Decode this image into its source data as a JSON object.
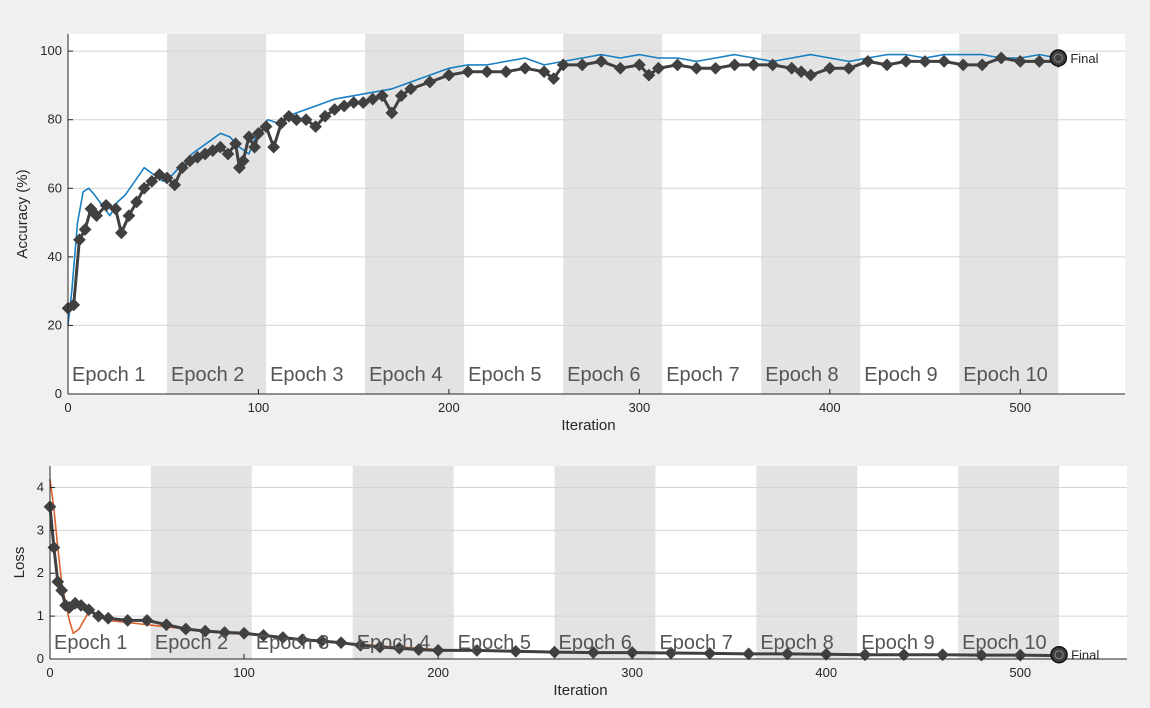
{
  "chart_data": [
    {
      "type": "line",
      "xlabel": "Iteration",
      "ylabel": "Accuracy (%)",
      "xlim": [
        0,
        555
      ],
      "ylim": [
        0,
        105
      ],
      "xticks": [
        0,
        100,
        200,
        300,
        400,
        500
      ],
      "yticks": [
        0,
        20,
        40,
        60,
        80,
        100
      ],
      "grid": true,
      "epochs": [
        {
          "label": "Epoch 1",
          "start": 0,
          "end": 52
        },
        {
          "label": "Epoch 2",
          "start": 52,
          "end": 104
        },
        {
          "label": "Epoch 3",
          "start": 104,
          "end": 156
        },
        {
          "label": "Epoch 4",
          "start": 156,
          "end": 208
        },
        {
          "label": "Epoch 5",
          "start": 208,
          "end": 260
        },
        {
          "label": "Epoch 6",
          "start": 260,
          "end": 312
        },
        {
          "label": "Epoch 7",
          "start": 312,
          "end": 364
        },
        {
          "label": "Epoch 8",
          "start": 364,
          "end": 416
        },
        {
          "label": "Epoch 9",
          "start": 416,
          "end": 468
        },
        {
          "label": "Epoch 10",
          "start": 468,
          "end": 520
        }
      ],
      "final_label": "Final",
      "final_point": {
        "x": 520,
        "y": 98
      },
      "series": [
        {
          "x": [
            0,
            2,
            5,
            8,
            11,
            14,
            18,
            22,
            26,
            30,
            35,
            40,
            45,
            50,
            55,
            60,
            65,
            70,
            75,
            80,
            85,
            90,
            95,
            100,
            105,
            110,
            115,
            120,
            130,
            140,
            150,
            160,
            170,
            180,
            190,
            200,
            210,
            220,
            230,
            240,
            250,
            260,
            270,
            280,
            290,
            300,
            310,
            320,
            330,
            340,
            350,
            360,
            370,
            380,
            390,
            400,
            410,
            420,
            430,
            440,
            450,
            460,
            470,
            480,
            490,
            500,
            510,
            520
          ],
          "y": [
            20,
            30,
            50,
            59,
            60,
            58,
            55,
            52,
            56,
            58,
            62,
            66,
            64,
            62,
            64,
            67,
            70,
            72,
            74,
            76,
            75,
            72,
            70,
            77,
            80,
            79,
            81,
            82,
            84,
            86,
            87,
            88,
            89,
            91,
            93,
            95,
            96,
            96,
            97,
            98,
            96,
            97,
            98,
            99,
            98,
            99,
            98,
            98,
            97,
            98,
            99,
            98,
            97,
            98,
            99,
            98,
            97,
            98,
            99,
            99,
            98,
            99,
            99,
            99,
            98,
            98,
            99,
            98
          ],
          "color": "#0072BD"
        },
        {
          "x": [
            0,
            3,
            6,
            9,
            12,
            15,
            20,
            25,
            28,
            32,
            36,
            40,
            44,
            48,
            52,
            56,
            60,
            64,
            68,
            72,
            76,
            80,
            84,
            88,
            90,
            92,
            95,
            98,
            100,
            104,
            108,
            112,
            116,
            120,
            125,
            130,
            135,
            140,
            145,
            150,
            155,
            160,
            165,
            170,
            175,
            180,
            190,
            200,
            210,
            220,
            230,
            240,
            250,
            255,
            260,
            270,
            280,
            290,
            300,
            305,
            310,
            320,
            330,
            340,
            350,
            360,
            370,
            380,
            385,
            390,
            400,
            410,
            420,
            430,
            440,
            450,
            460,
            470,
            480,
            490,
            500,
            510,
            520
          ],
          "y": [
            25,
            26,
            45,
            48,
            54,
            52,
            55,
            54,
            47,
            52,
            56,
            60,
            62,
            64,
            63,
            61,
            66,
            68,
            69,
            70,
            71,
            72,
            70,
            73,
            66,
            68,
            75,
            72,
            76,
            78,
            72,
            79,
            81,
            80,
            80,
            78,
            81,
            83,
            84,
            85,
            85,
            86,
            87,
            82,
            87,
            89,
            91,
            93,
            94,
            94,
            94,
            95,
            94,
            92,
            96,
            96,
            97,
            95,
            96,
            93,
            95,
            96,
            95,
            95,
            96,
            96,
            96,
            95,
            94,
            93,
            95,
            95,
            97,
            96,
            97,
            97,
            97,
            96,
            96,
            98,
            97,
            97,
            97
          ],
          "color": "#404040"
        }
      ]
    },
    {
      "type": "line",
      "xlabel": "Iteration",
      "ylabel": "Loss",
      "xlim": [
        0,
        555
      ],
      "ylim": [
        0,
        4.5
      ],
      "xticks": [
        0,
        100,
        200,
        300,
        400,
        500
      ],
      "yticks": [
        0,
        1,
        2,
        3,
        4
      ],
      "grid": true,
      "epochs": [
        {
          "label": "Epoch 1",
          "start": 0,
          "end": 52
        },
        {
          "label": "Epoch 2",
          "start": 52,
          "end": 104
        },
        {
          "label": "Epoch 3",
          "start": 104,
          "end": 156
        },
        {
          "label": "Epoch 4",
          "start": 156,
          "end": 208
        },
        {
          "label": "Epoch 5",
          "start": 208,
          "end": 260
        },
        {
          "label": "Epoch 6",
          "start": 260,
          "end": 312
        },
        {
          "label": "Epoch 7",
          "start": 312,
          "end": 364
        },
        {
          "label": "Epoch 8",
          "start": 364,
          "end": 416
        },
        {
          "label": "Epoch 9",
          "start": 416,
          "end": 468
        },
        {
          "label": "Epoch 10",
          "start": 468,
          "end": 520
        }
      ],
      "final_label": "Final",
      "final_point": {
        "x": 520,
        "y": 0.1
      },
      "series": [
        {
          "x": [
            0,
            2,
            4,
            6,
            8,
            10,
            12,
            15,
            20,
            25,
            30,
            40,
            50,
            60,
            70,
            80,
            90,
            100,
            110,
            120,
            130,
            140,
            150,
            160,
            170,
            180,
            190,
            200,
            220,
            240,
            260,
            280,
            300,
            320,
            340,
            360,
            380,
            400,
            420,
            440,
            460,
            480,
            500,
            520
          ],
          "y": [
            4.2,
            3.5,
            2.6,
            1.8,
            1.3,
            0.9,
            0.6,
            0.7,
            1.1,
            1.0,
            0.9,
            0.85,
            0.8,
            0.75,
            0.7,
            0.65,
            0.6,
            0.58,
            0.55,
            0.5,
            0.45,
            0.42,
            0.38,
            0.35,
            0.3,
            0.28,
            0.25,
            0.22,
            0.2,
            0.18,
            0.16,
            0.15,
            0.14,
            0.14,
            0.13,
            0.12,
            0.12,
            0.11,
            0.1,
            0.1,
            0.1,
            0.09,
            0.09,
            0.09
          ],
          "color": "#D95319"
        },
        {
          "x": [
            0,
            2,
            4,
            6,
            8,
            10,
            13,
            16,
            20,
            25,
            30,
            40,
            50,
            60,
            70,
            80,
            90,
            100,
            110,
            120,
            130,
            140,
            150,
            160,
            170,
            180,
            190,
            200,
            220,
            240,
            260,
            280,
            300,
            320,
            340,
            360,
            380,
            400,
            420,
            440,
            460,
            480,
            500,
            520
          ],
          "y": [
            3.55,
            2.6,
            1.8,
            1.6,
            1.25,
            1.2,
            1.3,
            1.25,
            1.15,
            1.0,
            0.95,
            0.9,
            0.9,
            0.8,
            0.7,
            0.65,
            0.62,
            0.6,
            0.55,
            0.5,
            0.45,
            0.42,
            0.38,
            0.32,
            0.28,
            0.25,
            0.22,
            0.2,
            0.2,
            0.18,
            0.16,
            0.15,
            0.15,
            0.14,
            0.13,
            0.12,
            0.12,
            0.11,
            0.1,
            0.1,
            0.1,
            0.09,
            0.09,
            0.08
          ],
          "color": "#404040"
        }
      ]
    }
  ]
}
